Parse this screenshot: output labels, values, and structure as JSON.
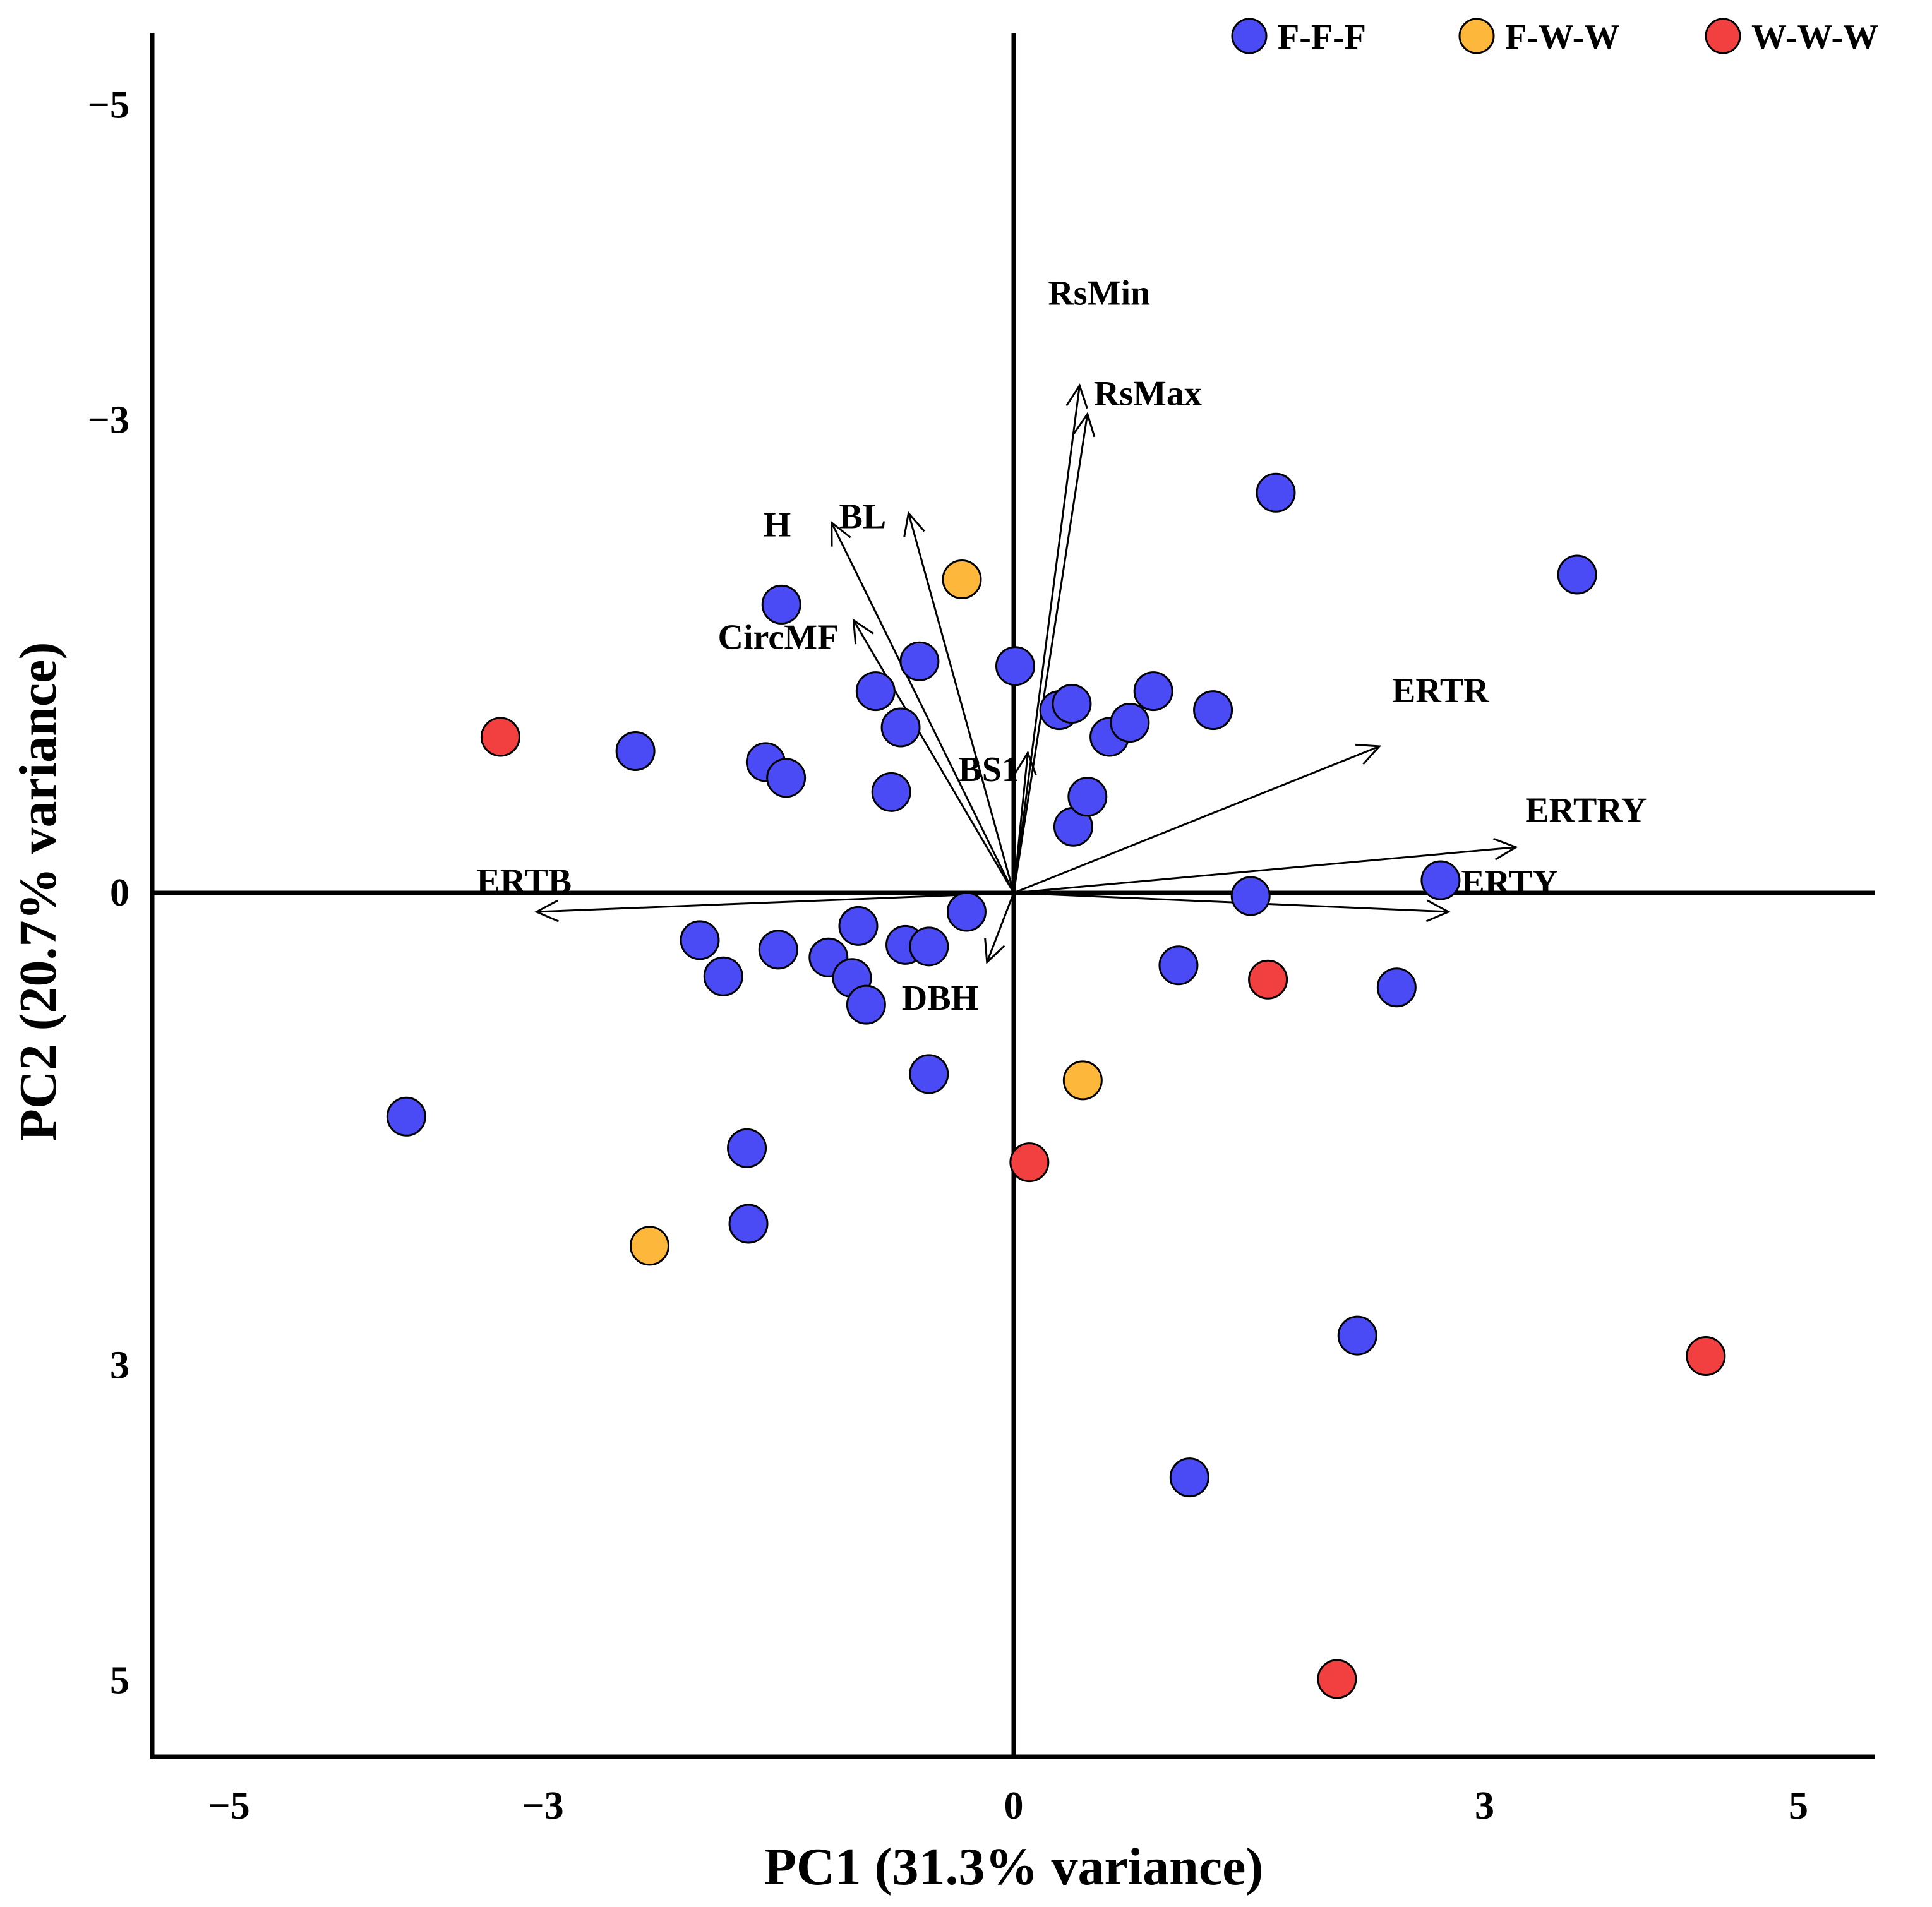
{
  "chart_data": {
    "type": "scatter",
    "subtype": "pca-biplot",
    "xlabel": "PC1 (31.3% variance)",
    "ylabel": "PC2 (20.7% variance)",
    "xlim": [
      -5.5,
      5.5
    ],
    "ylim": [
      -5.5,
      5.5
    ],
    "y_axis_inverted": true,
    "x_ticks": [
      {
        "value": -5,
        "label": "−5"
      },
      {
        "value": -3,
        "label": "−3"
      },
      {
        "value": 0,
        "label": "0"
      },
      {
        "value": 3,
        "label": "3"
      },
      {
        "value": 5,
        "label": "5"
      }
    ],
    "y_ticks": [
      {
        "value": -5,
        "label": "−5"
      },
      {
        "value": -3,
        "label": "−3"
      },
      {
        "value": 0,
        "label": "0"
      },
      {
        "value": 3,
        "label": "3"
      },
      {
        "value": 5,
        "label": "5"
      }
    ],
    "legend": {
      "placement": "top-right",
      "entries": [
        {
          "name": "F-F-F",
          "color": "#4b4bf5"
        },
        {
          "name": "F-W-W",
          "color": "#fdb73a"
        },
        {
          "name": "W-W-W",
          "color": "#f23f3f"
        }
      ]
    },
    "series": [
      {
        "name": "F-F-F",
        "color": "#4b4bf5",
        "points": [
          [
            -3.87,
            1.42
          ],
          [
            -2.41,
            -0.9
          ],
          [
            -2.0,
            0.3
          ],
          [
            -1.85,
            0.53
          ],
          [
            -1.7,
            1.62
          ],
          [
            -1.69,
            2.1
          ],
          [
            -1.58,
            -0.83
          ],
          [
            -1.5,
            0.36
          ],
          [
            -1.48,
            -1.83
          ],
          [
            -1.45,
            -0.73
          ],
          [
            -1.18,
            0.41
          ],
          [
            -1.03,
            0.54
          ],
          [
            -0.99,
            0.21
          ],
          [
            -0.94,
            0.71
          ],
          [
            -0.88,
            -1.28
          ],
          [
            -0.78,
            -0.64
          ],
          [
            -0.72,
            -1.05
          ],
          [
            -0.69,
            0.33
          ],
          [
            -0.6,
            -1.47
          ],
          [
            -0.54,
            0.34
          ],
          [
            -0.54,
            1.15
          ],
          [
            -0.3,
            0.12
          ],
          [
            0.01,
            -1.44
          ],
          [
            0.29,
            -1.16
          ],
          [
            0.37,
            -1.2
          ],
          [
            0.38,
            -0.42
          ],
          [
            0.47,
            -0.61
          ],
          [
            0.61,
            -0.99
          ],
          [
            0.74,
            -1.08
          ],
          [
            0.89,
            -1.28
          ],
          [
            1.05,
            0.46
          ],
          [
            1.12,
            3.71
          ],
          [
            1.27,
            -1.16
          ],
          [
            1.51,
            0.02
          ],
          [
            1.67,
            -2.54
          ],
          [
            2.19,
            2.81
          ],
          [
            2.44,
            0.6
          ],
          [
            2.72,
            -0.08
          ],
          [
            3.59,
            -2.02
          ]
        ]
      },
      {
        "name": "F-W-W",
        "color": "#fdb73a",
        "points": [
          [
            -2.32,
            2.24
          ],
          [
            -0.33,
            -1.99
          ],
          [
            0.44,
            1.19
          ]
        ]
      },
      {
        "name": "W-W-W",
        "color": "#f23f3f",
        "points": [
          [
            -3.27,
            -0.99
          ],
          [
            0.1,
            1.71
          ],
          [
            1.62,
            0.55
          ],
          [
            2.06,
            4.99
          ],
          [
            4.41,
            2.94
          ]
        ]
      }
    ],
    "vectors": [
      {
        "name": "RsMin",
        "x": 0.42,
        "y": -3.22
      },
      {
        "name": "RsMax",
        "x": 0.47,
        "y": -3.04
      },
      {
        "name": "H",
        "x": -1.16,
        "y": -2.35
      },
      {
        "name": "BL",
        "x": -0.67,
        "y": -2.41
      },
      {
        "name": "CircMF",
        "x": -1.02,
        "y": -1.73
      },
      {
        "name": "BS1",
        "x": 0.09,
        "y": -0.89
      },
      {
        "name": "ERTR",
        "x": 2.33,
        "y": -0.93
      },
      {
        "name": "ERTRY",
        "x": 3.2,
        "y": -0.29
      },
      {
        "name": "ERTY",
        "x": 2.77,
        "y": 0.12
      },
      {
        "name": "ERTB",
        "x": -3.04,
        "y": 0.12
      },
      {
        "name": "DBH",
        "x": -0.17,
        "y": 0.44
      }
    ]
  }
}
